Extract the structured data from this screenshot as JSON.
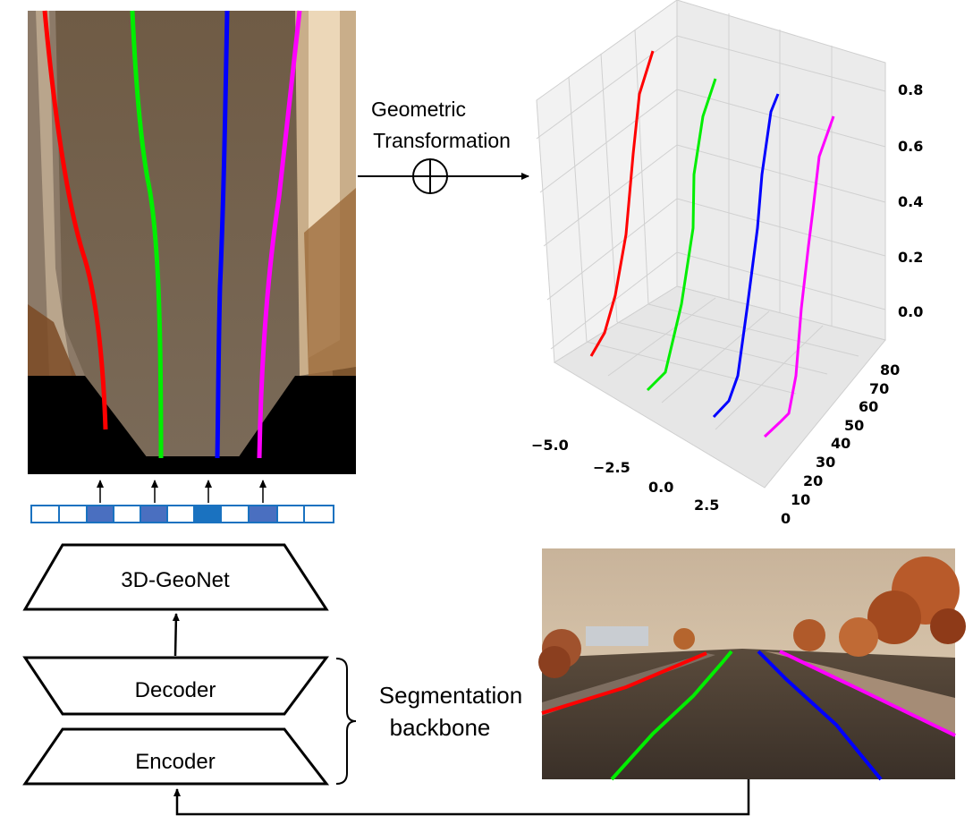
{
  "colors": {
    "lane_left": "#ff0000",
    "lane_mid_left": "#00ee00",
    "lane_mid_right": "#0000ff",
    "lane_right": "#ff00ff",
    "anchor_fill": "#4a6fc0",
    "anchor_border": "#1a72c0",
    "road": "#6b5a48",
    "sky": "#d8c3a6"
  },
  "labels": {
    "geometric_transformation_line1": "Geometric",
    "geometric_transformation_line2": "Transformation",
    "geonet": "3D-GeoNet",
    "decoder": "Decoder",
    "encoder": "Encoder",
    "segmentation_line1": "Segmentation",
    "segmentation_line2": "backbone"
  },
  "icons": {
    "oplus": "circle-plus-icon"
  },
  "anchors": {
    "cells": 12,
    "filled": [
      2,
      4,
      6,
      8
    ],
    "arrow_cells": [
      2,
      4,
      6,
      8
    ]
  },
  "chart_data": {
    "type": "line3d",
    "zlim": [
      -0.1,
      0.85
    ],
    "xtick_labels": [
      "−5.0",
      "−2.5",
      "0.0",
      "2.5"
    ],
    "ytick_labels": [
      "0",
      "10",
      "20",
      "30",
      "40",
      "50",
      "60",
      "70",
      "80"
    ],
    "ztick_labels": [
      "0.0",
      "0.2",
      "0.4",
      "0.6",
      "0.8"
    ],
    "grid": true
  }
}
